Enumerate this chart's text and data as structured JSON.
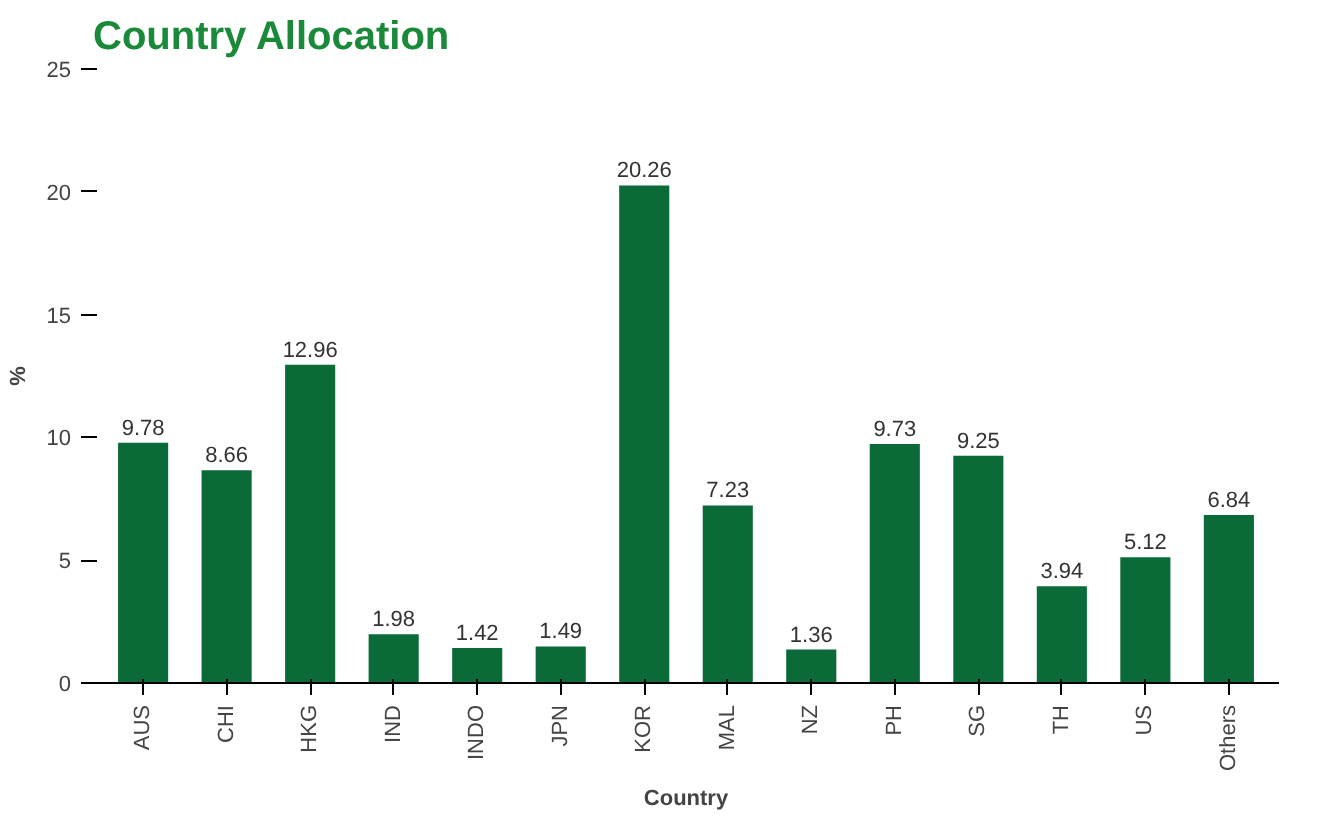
{
  "chart_data": {
    "type": "bar",
    "title": "Country Allocation",
    "xlabel": "Country",
    "ylabel": "%",
    "categories": [
      "AUS",
      "CHI",
      "HKG",
      "IND",
      "INDO",
      "JPN",
      "KOR",
      "MAL",
      "NZ",
      "PH",
      "SG",
      "TH",
      "US",
      "Others"
    ],
    "values": [
      9.78,
      8.66,
      12.96,
      1.98,
      1.42,
      1.49,
      20.26,
      7.23,
      1.36,
      9.73,
      9.25,
      3.94,
      5.12,
      6.84
    ],
    "color": "#0b6b38",
    "ylim": [
      0,
      25
    ],
    "yticks": [
      0,
      5,
      10,
      15,
      20,
      25
    ],
    "data_labels": true
  }
}
